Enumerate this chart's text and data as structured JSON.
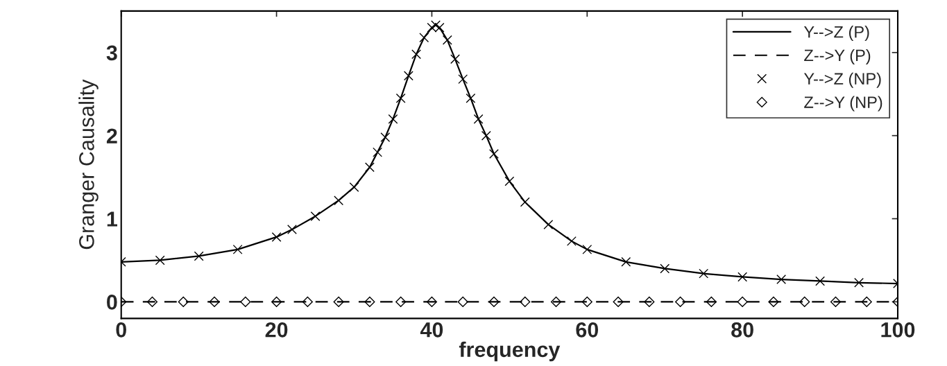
{
  "chart_data": {
    "type": "line",
    "xlabel": "frequency",
    "ylabel": "Granger Causality",
    "xlim": [
      0,
      100
    ],
    "ylim": [
      -0.2,
      3.5
    ],
    "xticks": [
      0,
      20,
      40,
      60,
      80,
      100
    ],
    "yticks": [
      0,
      1,
      2,
      3
    ],
    "grid": false,
    "legend": "top right",
    "series": [
      {
        "name": "Y-->Z (P)",
        "color": "#000000",
        "line_style": "solid",
        "marker": "none",
        "x": [
          0,
          5,
          10,
          15,
          20,
          22,
          25,
          28,
          30,
          32,
          33,
          34,
          35,
          36,
          37,
          38,
          39,
          40,
          40.5,
          41,
          42,
          43,
          44,
          45,
          46,
          47,
          48,
          50,
          52,
          55,
          58,
          60,
          65,
          70,
          75,
          80,
          85,
          90,
          95,
          100
        ],
        "values": [
          0.48,
          0.5,
          0.55,
          0.63,
          0.78,
          0.87,
          1.03,
          1.22,
          1.38,
          1.62,
          1.8,
          1.98,
          2.2,
          2.45,
          2.72,
          2.98,
          3.18,
          3.3,
          3.33,
          3.3,
          3.15,
          2.92,
          2.68,
          2.45,
          2.2,
          2.0,
          1.78,
          1.45,
          1.2,
          0.93,
          0.73,
          0.63,
          0.48,
          0.4,
          0.34,
          0.3,
          0.27,
          0.25,
          0.23,
          0.22
        ]
      },
      {
        "name": "Z-->Y (P)",
        "color": "#000000",
        "line_style": "dashed",
        "marker": "none",
        "x": [
          0,
          100
        ],
        "values": [
          0,
          0
        ]
      },
      {
        "name": "Y-->Z (NP)",
        "color": "#000000",
        "type": "scatter",
        "marker": "cross",
        "x": [
          0,
          5,
          10,
          15,
          20,
          22,
          25,
          28,
          30,
          32,
          33,
          34,
          35,
          36,
          37,
          38,
          39,
          40,
          40.5,
          41,
          42,
          43,
          44,
          45,
          46,
          47,
          48,
          50,
          52,
          55,
          58,
          60,
          65,
          70,
          75,
          80,
          85,
          90,
          95,
          100
        ],
        "values": [
          0.48,
          0.5,
          0.55,
          0.63,
          0.78,
          0.87,
          1.03,
          1.22,
          1.38,
          1.62,
          1.8,
          1.98,
          2.2,
          2.45,
          2.72,
          2.98,
          3.18,
          3.3,
          3.33,
          3.3,
          3.15,
          2.92,
          2.68,
          2.45,
          2.2,
          2.0,
          1.78,
          1.45,
          1.2,
          0.93,
          0.73,
          0.63,
          0.48,
          0.4,
          0.34,
          0.3,
          0.27,
          0.25,
          0.23,
          0.22
        ]
      },
      {
        "name": "Z-->Y (NP)",
        "color": "#000000",
        "type": "scatter",
        "marker": "diamond",
        "x": [
          0,
          4,
          8,
          12,
          16,
          20,
          24,
          28,
          32,
          36,
          40,
          44,
          48,
          52,
          56,
          60,
          64,
          68,
          72,
          76,
          80,
          84,
          88,
          92,
          96,
          100
        ],
        "values": [
          0,
          0,
          0,
          0,
          0,
          0,
          0,
          0,
          0,
          0,
          0,
          0,
          0,
          0,
          0,
          0,
          0,
          0,
          0,
          0,
          0,
          0,
          0,
          0,
          0,
          0
        ]
      }
    ]
  }
}
